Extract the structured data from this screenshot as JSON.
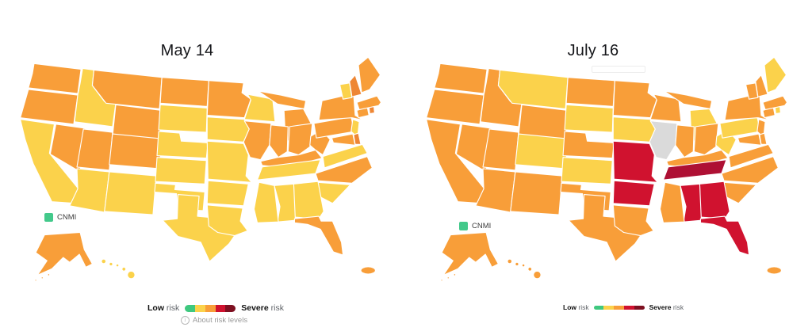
{
  "colors": {
    "green": "#3FC87F",
    "yellow": "#FBD24B",
    "orange": "#F89E39",
    "orange_deep": "#EE8634",
    "red": "#D0122F",
    "red_deep": "#AE1034",
    "maroon": "#7E1021",
    "cnmi_green": "#43C98B"
  },
  "legend_scale": [
    "green",
    "yellow",
    "orange",
    "red",
    "maroon"
  ],
  "panels": [
    {
      "title": "May 14",
      "cnmi_label": "CNMI",
      "legend": {
        "low_strong": "Low",
        "low_text": " risk",
        "high_strong": "Severe",
        "high_text": " risk"
      },
      "about_label": "About risk levels"
    },
    {
      "title": "July 16",
      "cnmi_label": "CNMI",
      "legend": {
        "low_strong": "Low",
        "low_text": " risk",
        "high_strong": "Severe",
        "high_text": " risk"
      }
    }
  ],
  "chart_data": [
    {
      "type": "heatmap",
      "subtype": "us-state-choropleth",
      "title": "May 14",
      "legend": {
        "low": "Low risk",
        "high": "Severe risk"
      },
      "region_levels": {
        "WA": "orange",
        "OR": "orange",
        "CA": "yellow",
        "NV": "orange",
        "ID": "yellow",
        "MT": "orange",
        "WY": "orange",
        "UT": "orange",
        "CO": "orange",
        "AZ": "yellow",
        "NM": "yellow",
        "ND": "orange",
        "SD": "yellow",
        "NE": "yellow",
        "KS": "yellow",
        "OK": "yellow",
        "TX": "yellow",
        "MN": "orange",
        "IA": "yellow",
        "MO": "yellow",
        "AR": "yellow",
        "LA": "yellow",
        "WI": "yellow",
        "IL": "orange",
        "MI": "orange",
        "MI_UP": "orange",
        "IN": "orange",
        "OH": "orange",
        "KY": "orange",
        "TN": "yellow",
        "MS": "yellow",
        "AL": "yellow",
        "GA": "yellow",
        "FL": "orange",
        "SC": "yellow",
        "NC": "orange",
        "VA": "yellow",
        "WV": "orange",
        "PA": "orange",
        "NY": "orange",
        "NJ": "yellow",
        "DE": "orange_deep",
        "MD": "orange",
        "CT": "orange",
        "RI": "orange_deep",
        "MA": "orange",
        "VT": "yellow",
        "NH": "orange_deep",
        "ME": "orange",
        "AK": "orange",
        "HI": "yellow",
        "PR": "orange",
        "CNMI": "green"
      }
    },
    {
      "type": "heatmap",
      "subtype": "us-state-choropleth",
      "title": "July 16",
      "legend": {
        "low": "Low risk",
        "high": "Severe risk"
      },
      "region_levels": {
        "WA": "orange",
        "OR": "orange",
        "CA": "orange",
        "NV": "orange",
        "ID": "orange",
        "MT": "yellow",
        "WY": "orange",
        "UT": "orange",
        "CO": "yellow",
        "AZ": "orange",
        "NM": "orange",
        "ND": "orange",
        "SD": "yellow",
        "NE": "orange",
        "KS": "yellow",
        "OK": "orange",
        "TX": "orange",
        "MN": "orange",
        "IA": "yellow",
        "MO": "red",
        "AR": "red",
        "LA": "orange",
        "WI": "orange",
        "MI": "yellow",
        "MI_UP": "orange",
        "IN": "orange",
        "OH": "orange",
        "KY": "orange",
        "TN": "red_deep",
        "MS": "orange",
        "AL": "red",
        "GA": "red",
        "FL": "red",
        "SC": "orange",
        "NC": "orange",
        "VA": "orange",
        "WV": "yellow",
        "PA": "yellow",
        "NY": "orange",
        "NJ": "orange",
        "DE": "orange",
        "MD": "orange",
        "CT": "orange",
        "RI": "yellow",
        "MA": "orange",
        "VT": "orange",
        "NH": "orange",
        "ME": "yellow",
        "AK": "orange",
        "HI": "orange",
        "PR": "orange",
        "CNMI": "green"
      }
    }
  ]
}
